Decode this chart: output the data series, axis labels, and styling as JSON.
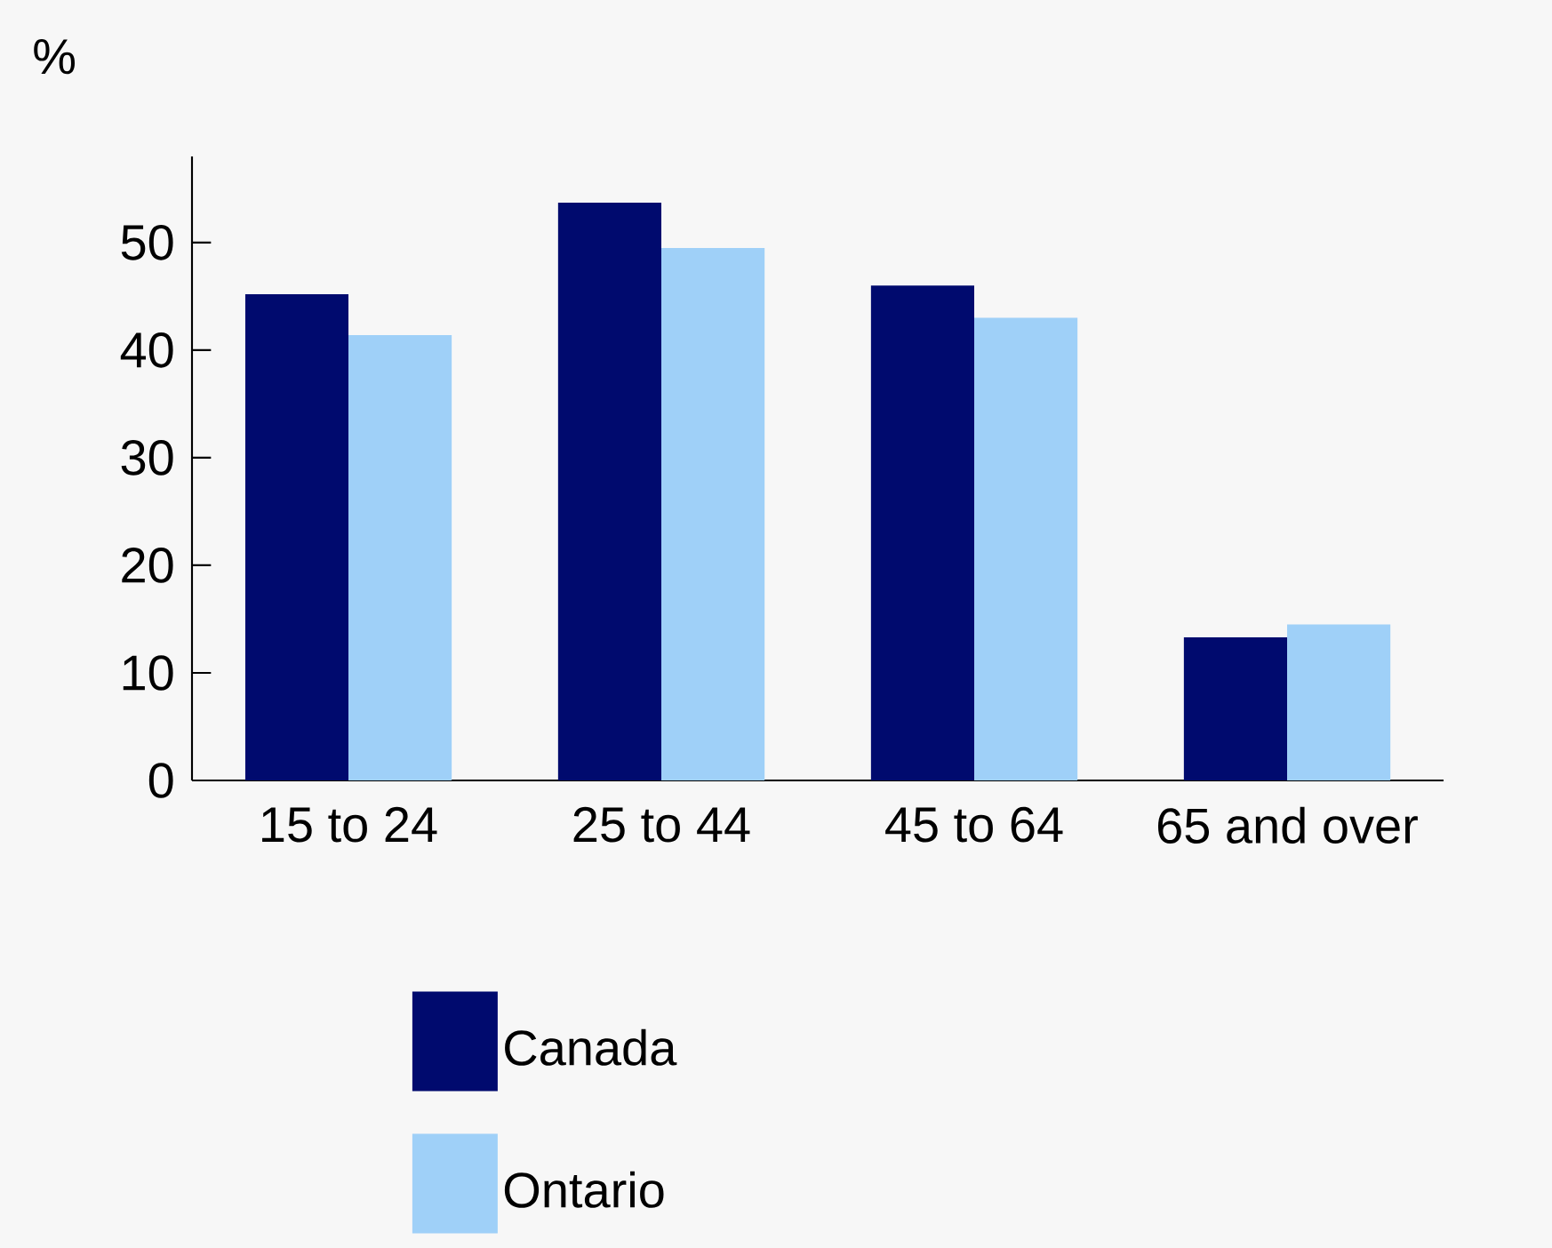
{
  "chart_data": {
    "type": "bar",
    "ylabel": "%",
    "categories": [
      "15 to 24",
      "25 to 44",
      "45 to 64",
      "65 and over"
    ],
    "series": [
      {
        "name": "Canada",
        "color": "#000a6e",
        "values": [
          45.2,
          53.7,
          46.0,
          13.3
        ]
      },
      {
        "name": "Ontario",
        "color": "#9fd0f8",
        "values": [
          41.4,
          49.5,
          43.0,
          14.5
        ]
      }
    ],
    "ylim": [
      0,
      58
    ],
    "yticks": [
      0,
      10,
      20,
      30,
      40,
      50
    ],
    "legend": "bottom"
  }
}
